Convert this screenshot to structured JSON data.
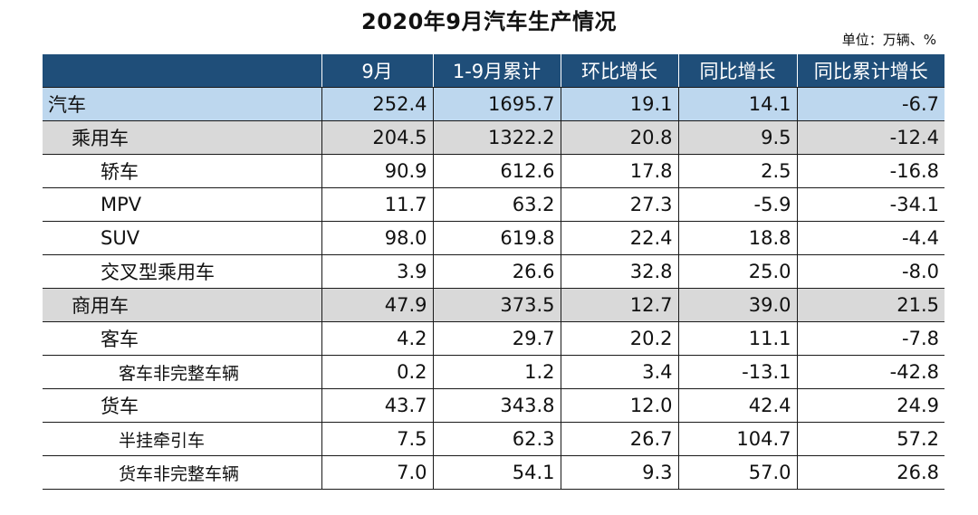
{
  "title": "2020年9月汽车生产情况",
  "unit": "单位：万辆、%",
  "colors": {
    "header_bg": "#1f4e79",
    "total_bg": "#bdd7ee",
    "category_bg": "#d9d9d9"
  },
  "columns": [
    "",
    "9月",
    "1-9月累计",
    "环比增长",
    "同比增长",
    "同比累计增长"
  ],
  "rows": [
    {
      "name": "汽车",
      "level": "total",
      "values": [
        "252.4",
        "1695.7",
        "19.1",
        "14.1",
        "-6.7"
      ]
    },
    {
      "name": "乘用车",
      "level": "category",
      "values": [
        "204.5",
        "1322.2",
        "20.8",
        "9.5",
        "-12.4"
      ]
    },
    {
      "name": "轿车",
      "level": "sub",
      "values": [
        "90.9",
        "612.6",
        "17.8",
        "2.5",
        "-16.8"
      ]
    },
    {
      "name": "MPV",
      "level": "sub",
      "values": [
        "11.7",
        "63.2",
        "27.3",
        "-5.9",
        "-34.1"
      ]
    },
    {
      "name": "SUV",
      "level": "sub",
      "values": [
        "98.0",
        "619.8",
        "22.4",
        "18.8",
        "-4.4"
      ]
    },
    {
      "name": "交叉型乘用车",
      "level": "sub",
      "values": [
        "3.9",
        "26.6",
        "32.8",
        "25.0",
        "-8.0"
      ]
    },
    {
      "name": "商用车",
      "level": "category",
      "values": [
        "47.9",
        "373.5",
        "12.7",
        "39.0",
        "21.5"
      ]
    },
    {
      "name": "客车",
      "level": "group",
      "values": [
        "4.2",
        "29.7",
        "20.2",
        "11.1",
        "-7.8"
      ]
    },
    {
      "name": "客车非完整车辆",
      "level": "detail",
      "values": [
        "0.2",
        "1.2",
        "3.4",
        "-13.1",
        "-42.8"
      ]
    },
    {
      "name": "货车",
      "level": "group",
      "values": [
        "43.7",
        "343.8",
        "12.0",
        "42.4",
        "24.9"
      ]
    },
    {
      "name": "半挂牵引车",
      "level": "detail",
      "values": [
        "7.5",
        "62.3",
        "26.7",
        "104.7",
        "57.2"
      ]
    },
    {
      "name": "货车非完整车辆",
      "level": "detail",
      "values": [
        "7.0",
        "54.1",
        "9.3",
        "57.0",
        "26.8"
      ]
    }
  ]
}
